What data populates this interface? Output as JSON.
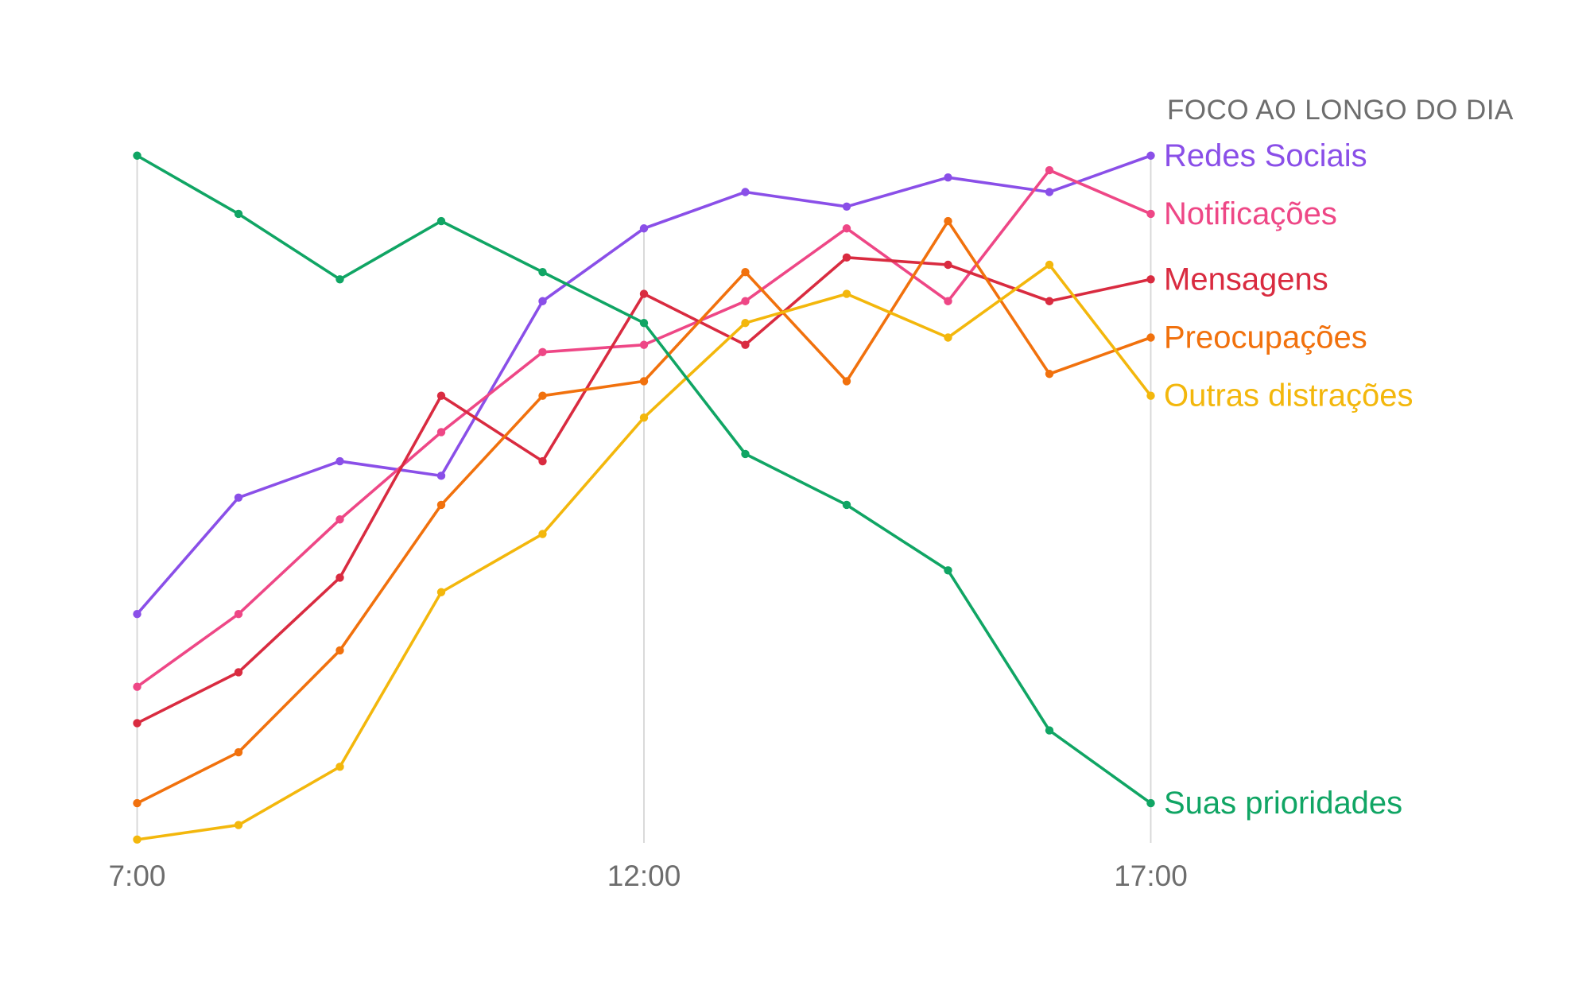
{
  "title": "FOCO AO LONGO DO DIA",
  "colors": {
    "title_text": "#6d6d6d",
    "tick_text": "#6d6d6d",
    "gridline": "#d6d6d6",
    "background": "#ffffff"
  },
  "chart_data": {
    "type": "line",
    "x": [
      7,
      8,
      9,
      10,
      11,
      12,
      13,
      14,
      15,
      16,
      17
    ],
    "x_tick_positions": [
      7,
      12,
      17
    ],
    "x_tick_labels": [
      "7:00",
      "12:00",
      "17:00"
    ],
    "ylim": [
      0,
      100
    ],
    "grid": "vertical-only",
    "legend_position": "right-of-line-ends",
    "title": "FOCO AO LONGO DO DIA",
    "series": [
      {
        "name": "Redes Sociais",
        "color": "#8a4fe8",
        "values": [
          32,
          48,
          53,
          51,
          75,
          85,
          90,
          88,
          92,
          90,
          95
        ]
      },
      {
        "name": "Notificações",
        "color": "#ee4786",
        "values": [
          22,
          32,
          45,
          57,
          68,
          69,
          75,
          85,
          75,
          93,
          87
        ]
      },
      {
        "name": "Mensagens",
        "color": "#d92b40",
        "values": [
          17,
          24,
          37,
          62,
          53,
          76,
          69,
          81,
          80,
          75,
          78
        ]
      },
      {
        "name": "Preocupações",
        "color": "#f1710d",
        "values": [
          6,
          13,
          27,
          47,
          62,
          64,
          79,
          64,
          86,
          65,
          70
        ]
      },
      {
        "name": "Outras distrações",
        "color": "#f3b70c",
        "values": [
          1,
          3,
          11,
          35,
          43,
          59,
          72,
          76,
          70,
          80,
          62
        ]
      },
      {
        "name": "Suas prioridades",
        "color": "#10a564",
        "values": [
          95,
          87,
          78,
          86,
          79,
          72,
          54,
          47,
          38,
          16,
          6
        ]
      }
    ]
  }
}
